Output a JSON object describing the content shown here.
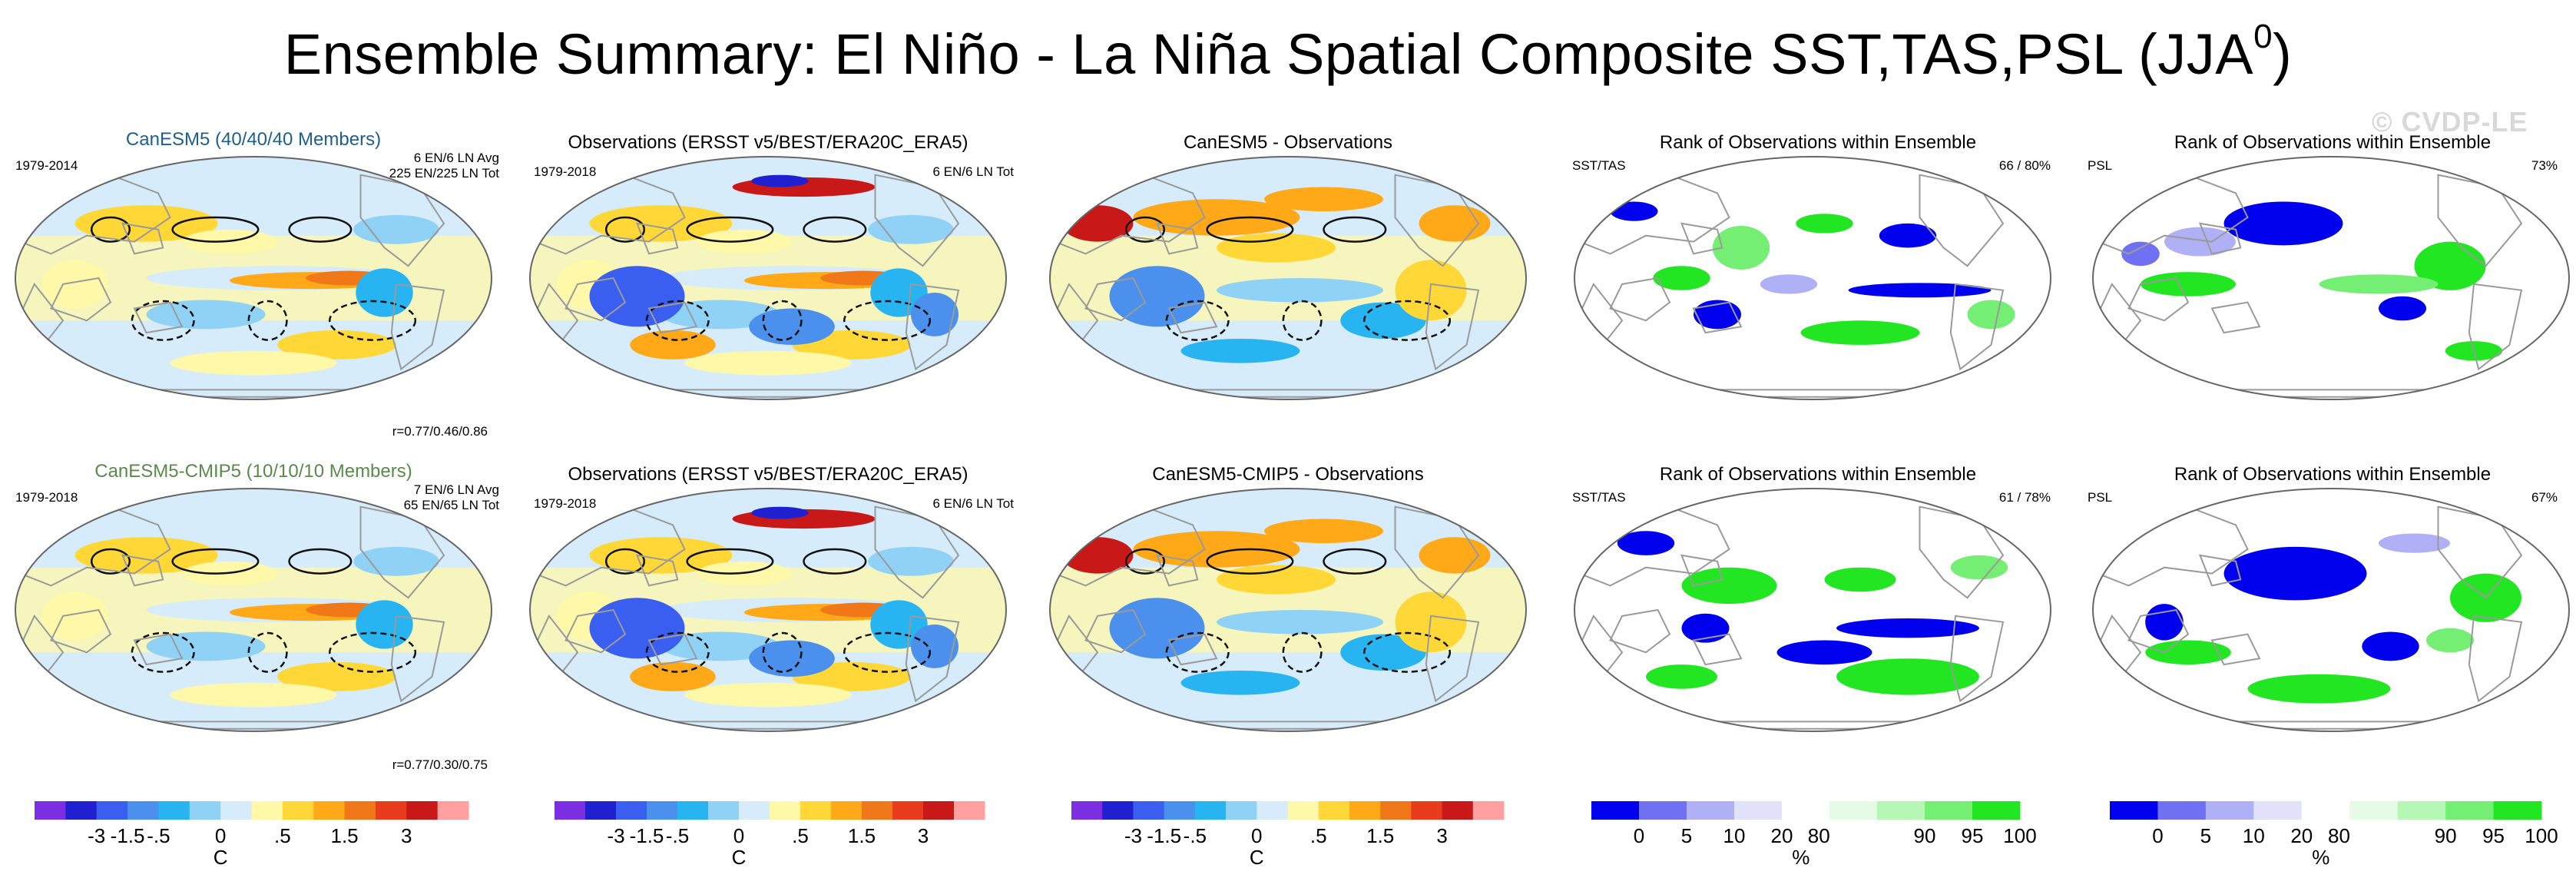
{
  "title": "Ensemble Summary: El Niño - La Niña Spatial Composite SST,TAS,PSL (JJA",
  "title_superscript": "0",
  "title_close": ")",
  "watermark": "© CVDP-LE",
  "colors": {
    "sst_scale": [
      "#7b2fe0",
      "#2020d0",
      "#3a5ff0",
      "#4a90ec",
      "#28b4f0",
      "#8fd2f6",
      "#d6ecfa",
      "#fff8a8",
      "#ffd838",
      "#ffa818",
      "#f07818",
      "#e83c1c",
      "#c81818",
      "#ff9f9f"
    ],
    "rank_scale": [
      "#0000ee",
      "#7070f2",
      "#b0b0f6",
      "#e2e2fb",
      "#ffffff",
      "#e6fbe6",
      "#b6f7b6",
      "#74ef74",
      "#22e622"
    ],
    "land_outline": "#9a9a9a",
    "contour": "#111111"
  },
  "rows": [
    {
      "model_title": "CanESM5 (40/40/40 Members)",
      "model_title_color": "#1e5f8f",
      "model_years": "1979-2014",
      "model_counts": [
        "6 EN/6 LN Avg",
        "225 EN/225 LN Tot"
      ],
      "model_corr": "r=0.77/0.46/0.86",
      "obs_title": "Observations (ERSST v5/BEST/ERA20C_ERA5)",
      "obs_years": "1979-2018",
      "obs_counts": "6 EN/6 LN Tot",
      "diff_title": "CanESM5 - Observations",
      "rank1_title": "Rank of Observations within Ensemble",
      "rank1_label": "SST/TAS",
      "rank1_pct": "66 /  80%",
      "rank2_title": "Rank of Observations within Ensemble",
      "rank2_label": "PSL",
      "rank2_pct": "73%"
    },
    {
      "model_title": "CanESM5-CMIP5 (10/10/10 Members)",
      "model_title_color": "#5a8a4a",
      "model_years": "1979-2018",
      "model_counts": [
        "7 EN/6 LN Avg",
        "65 EN/65 LN Tot"
      ],
      "model_corr": "r=0.77/0.30/0.75",
      "obs_title": "Observations (ERSST v5/BEST/ERA20C_ERA5)",
      "obs_years": "1979-2018",
      "obs_counts": "6 EN/6 LN Tot",
      "diff_title": "CanESM5-CMIP5 - Observations",
      "rank1_title": "Rank of Observations within Ensemble",
      "rank1_label": "SST/TAS",
      "rank1_pct": "61 /  78%",
      "rank2_title": "Rank of Observations within Ensemble",
      "rank2_label": "PSL",
      "rank2_pct": "67%"
    }
  ],
  "colorbars": {
    "sst": {
      "ticks": [
        "-3",
        "-1.5",
        "-.5",
        "0",
        ".5",
        "1.5",
        "3"
      ],
      "unit": "C"
    },
    "rank": {
      "ticks": [
        "0",
        "5",
        "10",
        "20",
        "80",
        "90",
        "95",
        "100"
      ],
      "unit": "%"
    }
  },
  "chart_data": {
    "type": "heatmap",
    "title": "Ensemble Summary: El Niño - La Niña Spatial Composite SST,TAS,PSL (JJA0)",
    "projection": "Robinson-style global maps, Pacific-centered",
    "sst_color_levels": [
      -3,
      -1.5,
      -0.5,
      0,
      0.5,
      1.5,
      3
    ],
    "sst_units": "C",
    "rank_levels": [
      0,
      5,
      10,
      20,
      80,
      90,
      95,
      100
    ],
    "rank_units": "%",
    "panels": [
      {
        "row": "CanESM5",
        "column": "model",
        "years": "1979-2014",
        "pattern_correlation": [
          0.77,
          0.46,
          0.86
        ]
      },
      {
        "row": "CanESM5",
        "column": "observations",
        "years": "1979-2018"
      },
      {
        "row": "CanESM5",
        "column": "model-minus-observations"
      },
      {
        "row": "CanESM5",
        "column": "rank SST/TAS",
        "percent_within": [
          66,
          80
        ]
      },
      {
        "row": "CanESM5",
        "column": "rank PSL",
        "percent_within": [
          73
        ]
      },
      {
        "row": "CanESM5-CMIP5",
        "column": "model",
        "years": "1979-2018",
        "pattern_correlation": [
          0.77,
          0.3,
          0.75
        ]
      },
      {
        "row": "CanESM5-CMIP5",
        "column": "observations",
        "years": "1979-2018"
      },
      {
        "row": "CanESM5-CMIP5",
        "column": "model-minus-observations"
      },
      {
        "row": "CanESM5-CMIP5",
        "column": "rank SST/TAS",
        "percent_within": [
          61,
          78
        ]
      },
      {
        "row": "CanESM5-CMIP5",
        "column": "rank PSL",
        "percent_within": [
          67
        ]
      }
    ]
  }
}
